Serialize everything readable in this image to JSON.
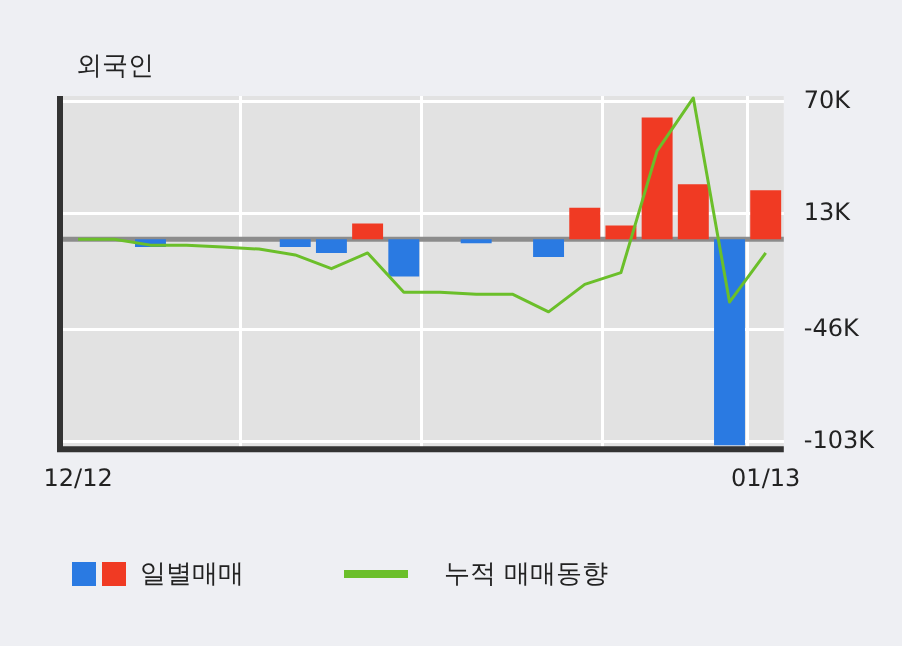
{
  "chart_data": {
    "type": "bar",
    "title": "외국인",
    "categories": [
      "12/12",
      null,
      null,
      null,
      null,
      null,
      null,
      null,
      null,
      null,
      null,
      null,
      null,
      null,
      null,
      null,
      null,
      null,
      null,
      "01/13"
    ],
    "series": [
      {
        "name": "일별매매",
        "colors": [
          "#f03a23",
          "#f03a23",
          "#2a7ae2",
          "#f03a23",
          "#f03a23",
          "#f03a23",
          "#2a7ae2",
          "#2a7ae2",
          "#f03a23",
          "#2a7ae2",
          "#f03a23",
          "#2a7ae2",
          "#f03a23",
          "#2a7ae2",
          "#f03a23",
          "#f03a23",
          "#f03a23",
          "#f03a23",
          "#2a7ae2",
          "#f03a23"
        ],
        "values": [
          0,
          0,
          -4000,
          0,
          0,
          0,
          -4000,
          -7000,
          8000,
          -19000,
          0,
          -2000,
          0,
          -9000,
          16000,
          7000,
          62000,
          28000,
          -105000,
          25000
        ]
      },
      {
        "name": "누적 매매동향",
        "type": "line",
        "color": "#6bbf2a",
        "values": [
          0,
          0,
          -3000,
          -3000,
          -4000,
          -5000,
          -8000,
          -15000,
          -7000,
          -27000,
          -27000,
          -28000,
          -28000,
          -37000,
          -23000,
          -17000,
          45000,
          72000,
          -32000,
          -7000
        ]
      }
    ],
    "ylim": [
      -107000,
      73000
    ],
    "yticks": [
      {
        "value": 70000,
        "label": "70K"
      },
      {
        "value": 13000,
        "label": "13K"
      },
      {
        "value": -46000,
        "label": "-46K"
      },
      {
        "value": -103000,
        "label": "-103K"
      }
    ],
    "ref_lines": [
      {
        "axis": "y",
        "value": 0,
        "color": "#8c8c8c"
      }
    ],
    "grid": true,
    "legend": "bottom"
  }
}
